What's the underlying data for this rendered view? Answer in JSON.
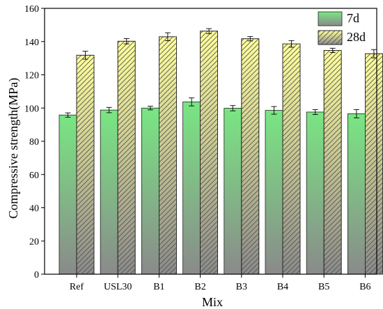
{
  "chart_data": {
    "type": "bar",
    "title": "",
    "xlabel": "Mix",
    "ylabel": "Compressive strength(MPa)",
    "ylim": [
      0,
      160
    ],
    "yticks": [
      0,
      20,
      40,
      60,
      80,
      100,
      120,
      140,
      160
    ],
    "categories": [
      "Ref",
      "USL30",
      "B1",
      "B2",
      "B3",
      "B4",
      "B5",
      "B6"
    ],
    "series": [
      {
        "name": "7d",
        "values": [
          95.8,
          98.8,
          100.0,
          103.7,
          99.9,
          98.6,
          97.6,
          96.6
        ],
        "errors": [
          1.3,
          1.6,
          1.1,
          2.4,
          1.6,
          2.3,
          1.5,
          2.5
        ],
        "color_top": "#79e683",
        "color_bottom": "#8a8a8a",
        "pattern": "none"
      },
      {
        "name": "28d",
        "values": [
          131.8,
          140.2,
          142.9,
          146.3,
          141.7,
          138.6,
          134.7,
          132.7
        ],
        "errors": [
          2.4,
          1.6,
          2.4,
          1.5,
          1.3,
          2.0,
          1.3,
          2.5
        ],
        "color_top": "#ffff9a",
        "color_bottom": "#8a8a8a",
        "pattern": "diagonal-hatch"
      }
    ],
    "legend": {
      "position": "top-right",
      "entries": [
        "7d",
        "28d"
      ]
    },
    "grid": false
  }
}
